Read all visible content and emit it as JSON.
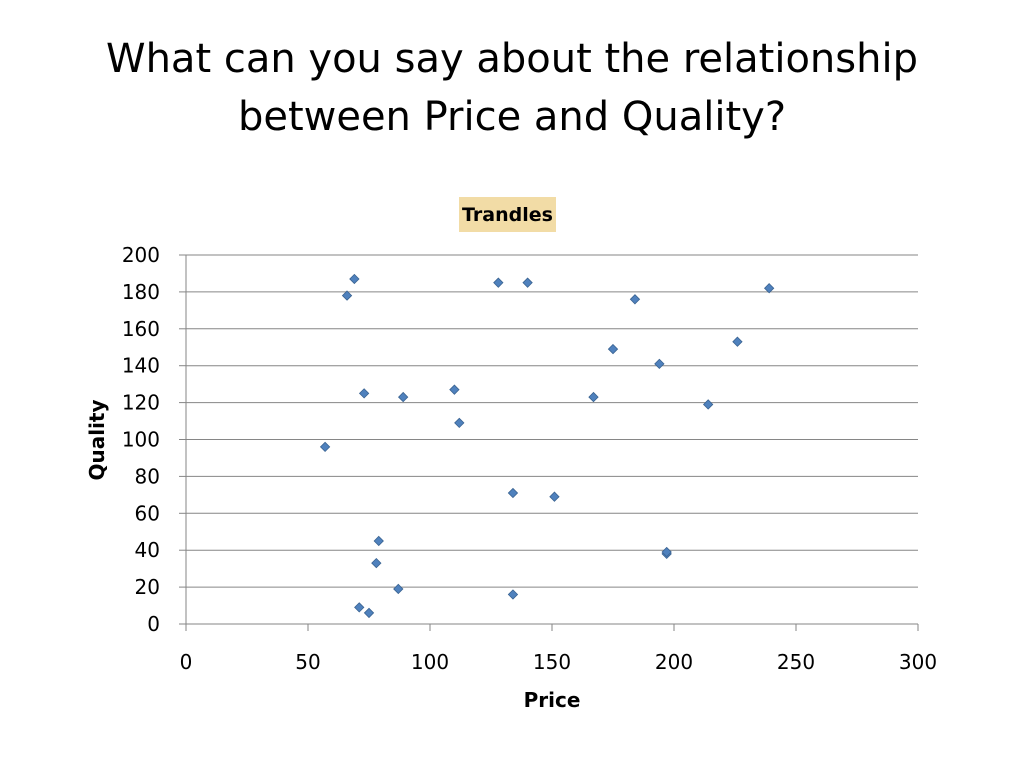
{
  "slide": {
    "title": "What can you say about the relationship between Price and Quality?"
  },
  "chart_data": {
    "type": "scatter",
    "title": "Trandles",
    "xlabel": "Price",
    "ylabel": "Quality",
    "xlim": [
      0,
      300
    ],
    "ylim": [
      0,
      200
    ],
    "xticks": [
      0,
      50,
      100,
      150,
      200,
      250,
      300
    ],
    "yticks": [
      0,
      20,
      40,
      60,
      80,
      100,
      120,
      140,
      160,
      180,
      200
    ],
    "grid": "horizontal",
    "legend": "none",
    "marker_color": "#4F81BD",
    "title_background": "#F2DCA6",
    "series": [
      {
        "points": [
          [
            57,
            96
          ],
          [
            66,
            178
          ],
          [
            69,
            187
          ],
          [
            71,
            9
          ],
          [
            73,
            125
          ],
          [
            75,
            6
          ],
          [
            78,
            33
          ],
          [
            79,
            45
          ],
          [
            87,
            19
          ],
          [
            89,
            123
          ],
          [
            110,
            127
          ],
          [
            112,
            109
          ],
          [
            128,
            185
          ],
          [
            134,
            71
          ],
          [
            134,
            16
          ],
          [
            140,
            185
          ],
          [
            151,
            69
          ],
          [
            167,
            123
          ],
          [
            175,
            149
          ],
          [
            184,
            176
          ],
          [
            194,
            141
          ],
          [
            197,
            38
          ],
          [
            197,
            39
          ],
          [
            214,
            119
          ],
          [
            226,
            153
          ],
          [
            239,
            182
          ]
        ]
      }
    ]
  }
}
